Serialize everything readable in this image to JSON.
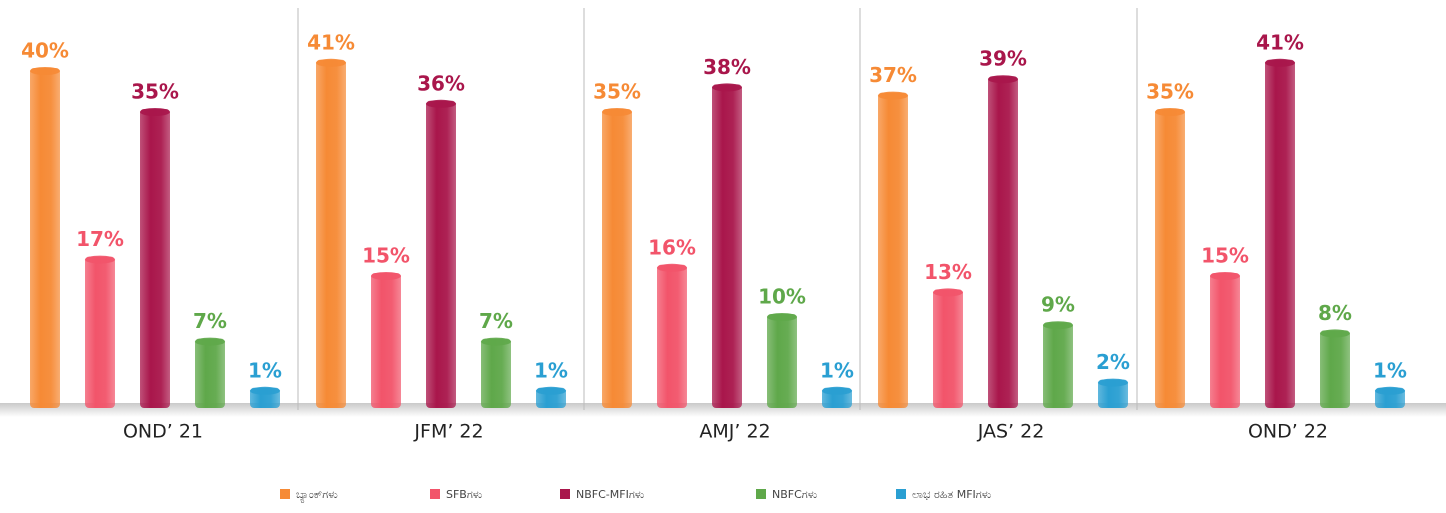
{
  "chart_data": {
    "type": "bar",
    "categories": [
      "OND’ 21",
      "JFM’ 22",
      "AMJ’ 22",
      "JAS’ 22",
      "OND’ 22"
    ],
    "series": [
      {
        "name": "ಬ್ಯಾಂಕ್‌ಗಳು",
        "color": "#f68a35",
        "values": [
          40,
          41,
          35,
          37,
          35
        ],
        "value_labels": [
          "40%",
          "41%",
          "35%",
          "37%",
          "35%"
        ]
      },
      {
        "name": "SFBಗಳು",
        "color": "#f2546a",
        "values": [
          17,
          15,
          16,
          13,
          15
        ],
        "value_labels": [
          "17%",
          "15%",
          "16%",
          "13%",
          "15%"
        ]
      },
      {
        "name": "NBFC-MFIಗಳು",
        "color": "#a9164b",
        "values": [
          35,
          36,
          38,
          39,
          41
        ],
        "value_labels": [
          "35%",
          "36%",
          "38%",
          "39%",
          "41%"
        ]
      },
      {
        "name": "NBFCಗಳು",
        "color": "#5fa84a",
        "values": [
          7,
          7,
          10,
          9,
          8
        ],
        "value_labels": [
          "7%",
          "7%",
          "10%",
          "9%",
          "8%"
        ]
      },
      {
        "name": "ಲಾಭ ರಹಿತ MFIಗಳು",
        "color": "#2a9fd2",
        "values": [
          1,
          1,
          1,
          2,
          1
        ],
        "value_labels": [
          "1%",
          "1%",
          "1%",
          "2%",
          "1%"
        ]
      }
    ]
  }
}
